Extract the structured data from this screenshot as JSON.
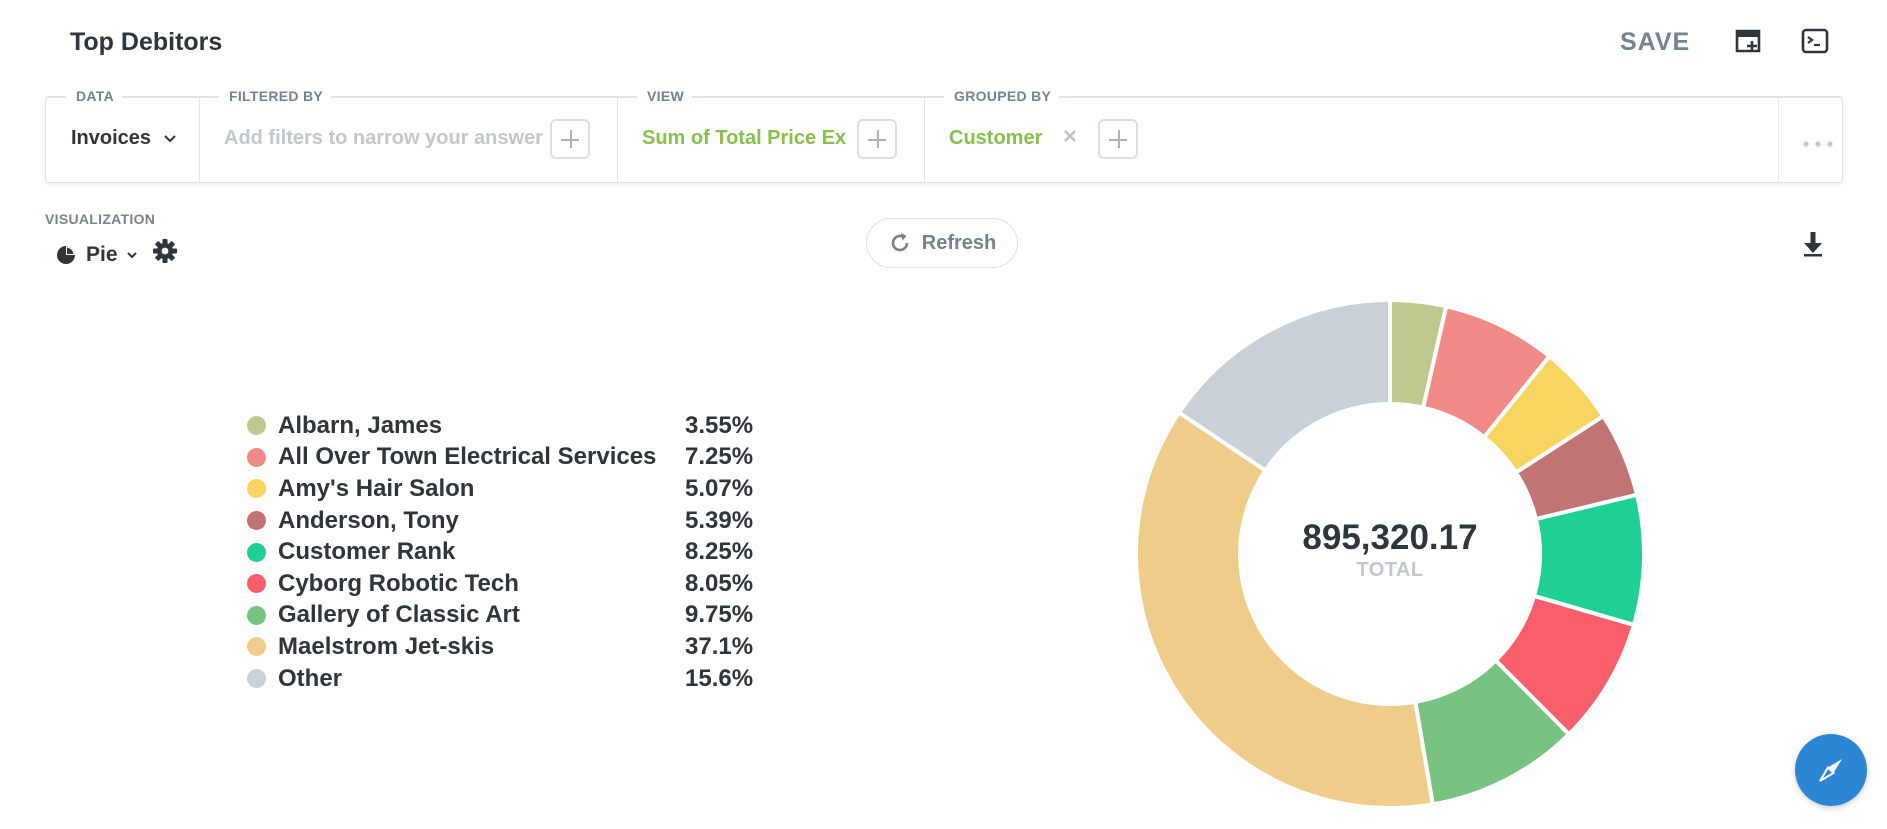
{
  "header": {
    "title": "Top Debitors",
    "save_label": "SAVE"
  },
  "query": {
    "data": {
      "label": "DATA",
      "value": "Invoices"
    },
    "filter": {
      "label": "FILTERED BY",
      "placeholder": "Add filters to narrow your answer"
    },
    "view": {
      "label": "VIEW",
      "value": "Sum of Total Price Ex"
    },
    "group": {
      "label": "GROUPED BY",
      "value": "Customer"
    }
  },
  "visualization": {
    "label": "VISUALIZATION",
    "type": "Pie"
  },
  "refresh_label": "Refresh",
  "chart_data": {
    "type": "pie",
    "style": "donut",
    "total_value": "895,320.17",
    "total_label": "TOTAL",
    "slices": [
      {
        "name": "Albarn, James",
        "percent": 3.55,
        "percent_label": "3.55%",
        "color": "#bfc98f"
      },
      {
        "name": "All Over Town Electrical Services",
        "percent": 7.25,
        "percent_label": "7.25%",
        "color": "#f08b88"
      },
      {
        "name": "Amy's Hair Salon",
        "percent": 5.07,
        "percent_label": "5.07%",
        "color": "#f7d560"
      },
      {
        "name": "Anderson, Tony",
        "percent": 5.39,
        "percent_label": "5.39%",
        "color": "#c27474"
      },
      {
        "name": "Customer Rank",
        "percent": 8.25,
        "percent_label": "8.25%",
        "color": "#1ed093"
      },
      {
        "name": "Cyborg Robotic Tech",
        "percent": 8.05,
        "percent_label": "8.05%",
        "color": "#f85f6b"
      },
      {
        "name": "Gallery of Classic Art",
        "percent": 9.75,
        "percent_label": "9.75%",
        "color": "#78c282"
      },
      {
        "name": "Maelstrom Jet-skis",
        "percent": 37.1,
        "percent_label": "37.1%",
        "color": "#efcc8a"
      },
      {
        "name": "Other",
        "percent": 15.6,
        "percent_label": "15.6%",
        "color": "#c9d0d6"
      }
    ]
  },
  "icons": {
    "add_dashboard": "add-to-dashboard-icon",
    "console": "console-icon",
    "chevron": "chevron-down-icon",
    "pie": "pie-chart-icon",
    "gear": "gear-icon",
    "refresh": "refresh-icon",
    "download": "download-icon",
    "more": "ellipsis-icon",
    "close": "close-icon",
    "compass": "compass-icon"
  },
  "colors": {
    "accent_green": "#88bf4d",
    "muted_text": "#74838f",
    "fab_blue": "#2d86d4"
  }
}
